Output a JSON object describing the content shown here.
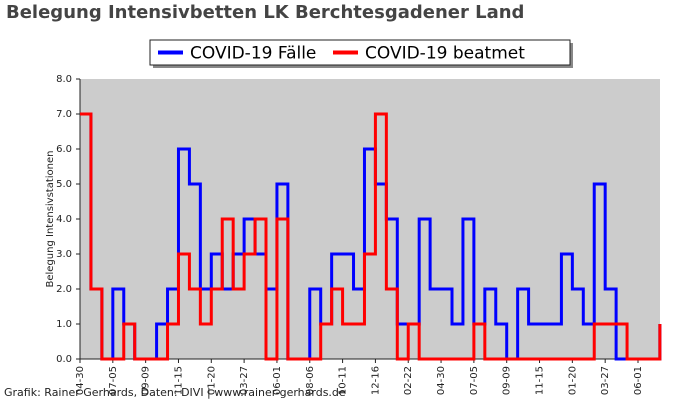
{
  "chart_data": {
    "type": "line",
    "drawstyle": "steps",
    "title": "Belegung Intensivbetten LK Berchtesgadener Land",
    "y_label": "Belegung Intensivstationen",
    "footer": "Grafik: Rainer Gerhards, Daten: DIVI | www.rainer-gerhards.de",
    "legend": "upper center",
    "background": "#cccccc",
    "categories": [
      "04-30",
      null,
      null,
      "07-05",
      null,
      null,
      "09-09",
      null,
      null,
      "11-15",
      null,
      null,
      "01-20",
      null,
      null,
      "03-27",
      null,
      null,
      "06-01",
      null,
      null,
      "08-06",
      null,
      null,
      "10-11",
      null,
      null,
      "12-16",
      null,
      null,
      "02-22",
      null,
      null,
      "04-30",
      null,
      null,
      "07-05",
      null,
      null,
      "09-09",
      null,
      null,
      "11-15",
      null,
      null,
      "01-20",
      null,
      null,
      "03-27",
      null,
      null,
      "06-01",
      null,
      null
    ],
    "series": [
      {
        "name": "COVID-19 Fälle",
        "color": "#0000ff",
        "values": [
          7,
          2,
          0,
          2,
          1,
          0,
          0,
          1,
          2,
          6,
          5,
          2,
          3,
          2,
          3,
          4,
          3,
          2,
          5,
          0,
          0,
          2,
          1,
          3,
          3,
          2,
          6,
          5,
          4,
          1,
          1,
          4,
          2,
          2,
          1,
          4,
          1,
          2,
          1,
          0,
          2,
          1,
          1,
          1,
          3,
          2,
          1,
          5,
          2,
          0,
          0,
          0,
          0,
          1
        ]
      },
      {
        "name": "COVID-19 beatmet",
        "color": "#ff0000",
        "values": [
          7,
          2,
          0,
          0,
          1,
          0,
          0,
          0,
          1,
          3,
          2,
          1,
          2,
          4,
          2,
          3,
          4,
          0,
          4,
          0,
          0,
          0,
          1,
          2,
          1,
          1,
          3,
          7,
          2,
          0,
          1,
          0,
          0,
          0,
          0,
          0,
          1,
          0,
          0,
          0,
          0,
          0,
          0,
          0,
          0,
          0,
          0,
          1,
          1,
          1,
          0,
          0,
          0,
          1
        ]
      }
    ],
    "ylim": [
      0,
      8
    ],
    "yticks": [
      {
        "value": 0,
        "label": "0.0"
      },
      {
        "value": 1,
        "label": "1.0"
      },
      {
        "value": 2,
        "label": "2.0"
      },
      {
        "value": 3,
        "label": "3.0"
      },
      {
        "value": 4,
        "label": "4.0"
      },
      {
        "value": 5,
        "label": "5.0"
      },
      {
        "value": 6,
        "label": "6.0"
      },
      {
        "value": 7,
        "label": "7.0"
      },
      {
        "value": 8,
        "label": "8.0"
      }
    ]
  }
}
